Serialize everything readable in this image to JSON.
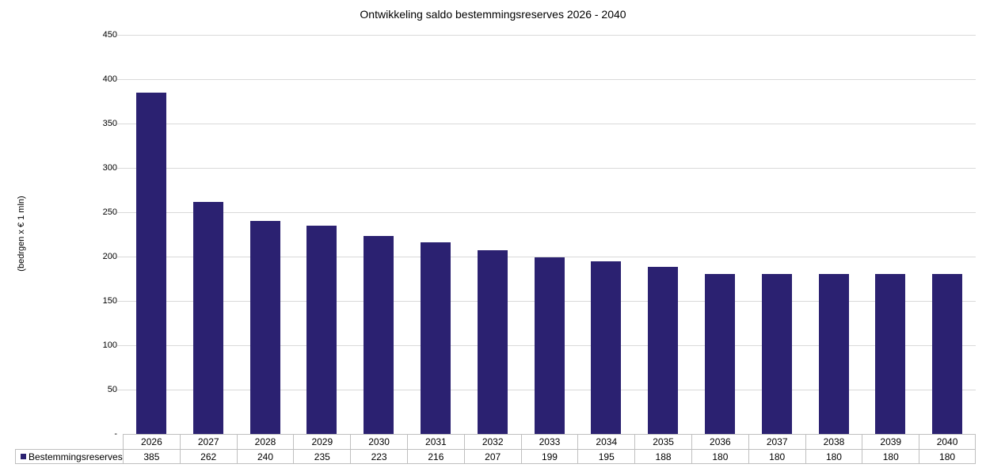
{
  "chart_data": {
    "type": "bar",
    "title": "Ontwikkeling saldo bestemmingsreserves 2026 - 2040",
    "ylabel": "(bedrgen x € 1 mln)",
    "xlabel": "",
    "categories": [
      "2026",
      "2027",
      "2028",
      "2029",
      "2030",
      "2031",
      "2032",
      "2033",
      "2034",
      "2035",
      "2036",
      "2037",
      "2038",
      "2039",
      "2040"
    ],
    "series": [
      {
        "name": "Bestemmingsreserves",
        "values": [
          385,
          262,
          240,
          235,
          223,
          216,
          207,
          199,
          195,
          188,
          180,
          180,
          180,
          180,
          180
        ]
      }
    ],
    "ylim": [
      0,
      450
    ],
    "ytick_interval": 50,
    "ytick_labels": [
      "-",
      "50",
      "100",
      "150",
      "200",
      "250",
      "300",
      "350",
      "400",
      "450"
    ],
    "grid": true,
    "legend_position": "data-table-left",
    "colors": {
      "bar": "#2B2171",
      "gridline": "#D9D9D9",
      "table_border": "#BFBFBF",
      "text": "#000000"
    }
  }
}
